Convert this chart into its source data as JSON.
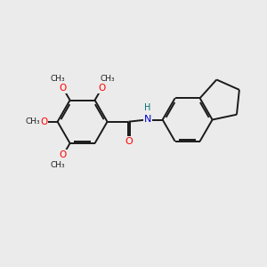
{
  "background_color": "#ebebeb",
  "bond_color": "#1a1a1a",
  "atom_colors": {
    "O": "#ff0000",
    "N": "#0000cd",
    "H": "#007070",
    "C": "#1a1a1a"
  },
  "bond_lw": 1.4,
  "figsize": [
    3.0,
    3.0
  ],
  "dpi": 100,
  "xlim": [
    0,
    10
  ],
  "ylim": [
    0,
    10
  ]
}
